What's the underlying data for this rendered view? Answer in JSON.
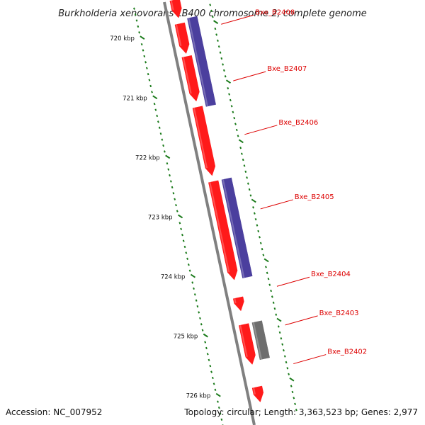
{
  "title": "Burkholderia xenovorans LB400 chromosome 2, complete genome",
  "footer": {
    "accession": "Accession: NC_007952",
    "summary": "Topology: circular; Length: 3,363,523 bp; Genes: 2,977"
  },
  "colors": {
    "backbone": "#808080",
    "forward_gene": "#ff1a1a",
    "reverse_gene": "#4b3f9e",
    "other_feature": "#6e6e6e",
    "gene_label": "#dd0000",
    "tick": "#1a7a1a"
  },
  "scale": {
    "start_kbp": 719.5,
    "end_kbp": 726.6,
    "tick_labels": [
      {
        "kbp": 720,
        "label": "720 kbp"
      },
      {
        "kbp": 721,
        "label": "721 kbp"
      },
      {
        "kbp": 722,
        "label": "722 kbp"
      },
      {
        "kbp": 723,
        "label": "723 kbp"
      },
      {
        "kbp": 724,
        "label": "724 kbp"
      },
      {
        "kbp": 725,
        "label": "725 kbp"
      },
      {
        "kbp": 726,
        "label": "726 kbp"
      }
    ]
  },
  "features": [
    {
      "name": "",
      "strand": "forward",
      "start_kbp": 719.5,
      "end_kbp": 719.8
    },
    {
      "name": "",
      "strand": "forward",
      "start_kbp": 719.9,
      "end_kbp": 720.4
    },
    {
      "name": "",
      "strand": "forward",
      "start_kbp": 720.45,
      "end_kbp": 721.2
    },
    {
      "name": "Bxe_B2408",
      "strand": "reverse",
      "start_kbp": 719.84,
      "end_kbp": 721.32
    },
    {
      "name": "Bxe_B2407",
      "strand": "forward",
      "start_kbp": 721.3,
      "end_kbp": 722.45
    },
    {
      "name": "Bxe_B2406",
      "strand": "forward",
      "start_kbp": 722.55,
      "end_kbp": 724.2
    },
    {
      "name": "Bxe_B2405",
      "strand": "reverse",
      "start_kbp": 722.55,
      "end_kbp": 724.2
    },
    {
      "name": "Bxe_B2404",
      "strand": "forward",
      "start_kbp": 724.5,
      "end_kbp": 724.72
    },
    {
      "name": "Bxe_B2403",
      "strand": "forward",
      "start_kbp": 724.95,
      "end_kbp": 725.62
    },
    {
      "name": "",
      "strand": "other",
      "start_kbp": 724.95,
      "end_kbp": 725.57
    },
    {
      "name": "Bxe_B2402",
      "strand": "forward",
      "start_kbp": 726.0,
      "end_kbp": 726.25
    }
  ],
  "labels": [
    {
      "text": "Bxe_B2408",
      "kbp": 720.05
    },
    {
      "text": "Bxe_B2407",
      "kbp": 721.0
    },
    {
      "text": "Bxe_B2406",
      "kbp": 721.9
    },
    {
      "text": "Bxe_B2405",
      "kbp": 723.15
    },
    {
      "text": "Bxe_B2404",
      "kbp": 724.45
    },
    {
      "text": "Bxe_B2403",
      "kbp": 725.1
    },
    {
      "text": "Bxe_B2402",
      "kbp": 725.75
    }
  ]
}
